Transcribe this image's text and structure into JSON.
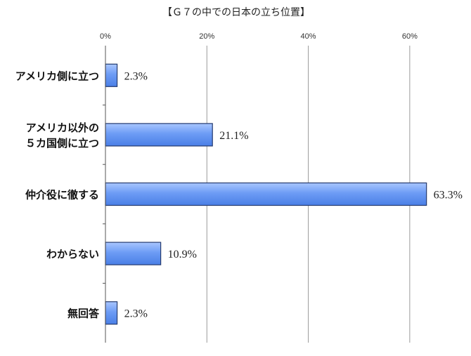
{
  "chart_data": {
    "type": "bar",
    "orientation": "horizontal",
    "title": "【Ｇ７の中での日本の立ち位置】",
    "categories": [
      [
        "アメリカ側に立つ"
      ],
      [
        "アメリカ以外の",
        "５カ国側に立つ"
      ],
      [
        "仲介役に徹する"
      ],
      [
        "わからない"
      ],
      [
        "無回答"
      ]
    ],
    "values": [
      2.3,
      21.1,
      63.3,
      10.9,
      2.3
    ],
    "data_labels": [
      "2.3%",
      "21.1%",
      "63.3%",
      "10.9%",
      "2.3%"
    ],
    "xaxis_ticks": [
      "0%",
      "20%",
      "40%",
      "60%"
    ],
    "xlim": [
      0,
      70
    ],
    "tick_values": [
      0,
      20,
      40,
      60
    ],
    "xaxis_position": "top",
    "grid": true,
    "legend": "none",
    "colors": {
      "bar": "#5b8ff0",
      "bar_edge": "#243a6e",
      "grid": "#9a9a9a",
      "axis": "#555555"
    }
  }
}
